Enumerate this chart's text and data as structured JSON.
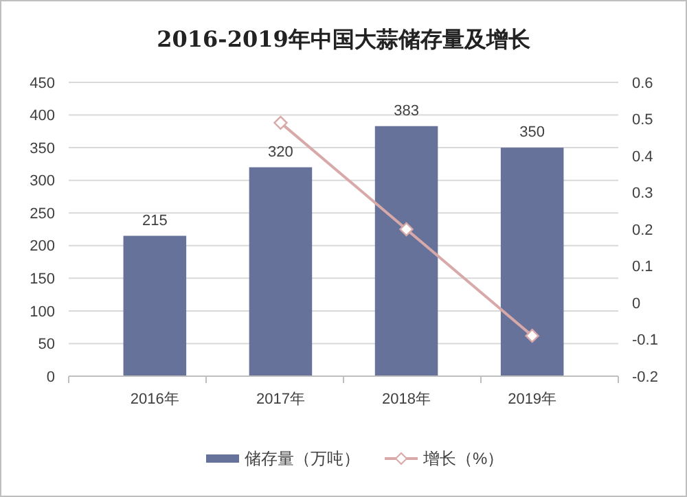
{
  "chart_data": {
    "type": "bar",
    "title": "2016-2019年中国大蒜储存量及增长",
    "categories": [
      "2016年",
      "2017年",
      "2018年",
      "2019年"
    ],
    "series": [
      {
        "name": "储存量（万吨）",
        "color": "#67729a",
        "values": [
          215,
          320,
          383,
          350
        ],
        "value_labels": [
          "215",
          "320",
          "383",
          "350"
        ]
      },
      {
        "name": "增长（%）",
        "type": "line",
        "axis": "y2",
        "color": "#d8a9a9",
        "values": [
          null,
          0.49,
          0.2,
          -0.09
        ],
        "marker": "diamond"
      }
    ],
    "ylim": [
      0,
      450
    ],
    "yticks": [
      0,
      50,
      100,
      150,
      200,
      250,
      300,
      350,
      400,
      450
    ],
    "y2lim": [
      -0.2,
      0.6
    ],
    "y2ticks": [
      -0.2,
      -0.1,
      0,
      0.1,
      0.2,
      0.3,
      0.4,
      0.5,
      0.6
    ],
    "grid": "y",
    "legend": "bottom"
  }
}
